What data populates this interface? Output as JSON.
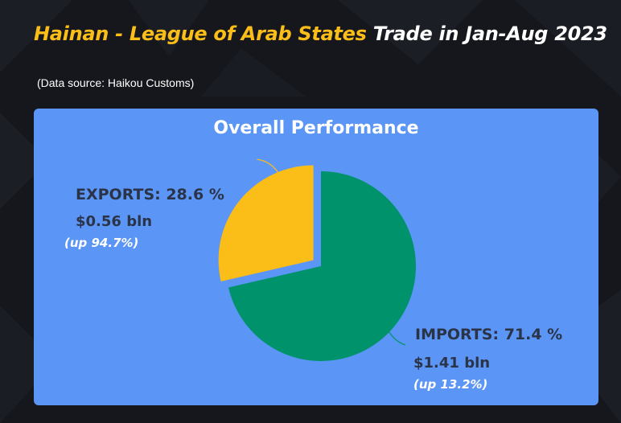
{
  "title": {
    "highlight": "Hainan - League of Arab States",
    "rest": " Trade in Jan-Aug 2023"
  },
  "source": "(Data source: Haikou Customs)",
  "colors": {
    "background": "#15171d",
    "panel": "#5b95f6",
    "title_highlight": "#fbbd18",
    "exports": "#fbbd18",
    "imports": "#00936b",
    "label_text": "#2b3447"
  },
  "chart_data": {
    "type": "pie",
    "title": "Overall Performance",
    "slices": [
      {
        "name": "EXPORTS",
        "percent": 28.6,
        "label": "EXPORTS: 28.6 %",
        "value": 0.56,
        "value_text": "$0.56 bln",
        "growth_text": "(up 94.7%)",
        "color": "#fbbd18",
        "exploded": true
      },
      {
        "name": "IMPORTS",
        "percent": 71.4,
        "label": "IMPORTS: 71.4 %",
        "value": 1.41,
        "value_text": "$1.41 bln",
        "growth_text": "(up 13.2%)",
        "color": "#00936b",
        "exploded": false
      }
    ]
  }
}
